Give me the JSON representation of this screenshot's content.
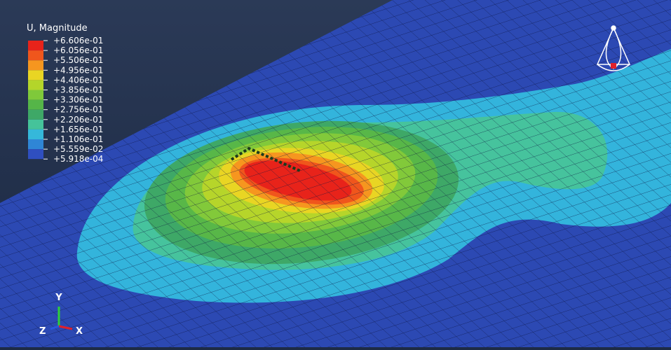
{
  "legend": {
    "title": "U, Magnitude",
    "labels": [
      "+6.606e-01",
      "+6.056e-01",
      "+5.506e-01",
      "+4.956e-01",
      "+4.406e-01",
      "+3.856e-01",
      "+3.306e-01",
      "+2.756e-01",
      "+2.206e-01",
      "+1.656e-01",
      "+1.106e-01",
      "+5.559e-02",
      "+5.918e-04"
    ],
    "colors": [
      "#e8231a",
      "#f0561c",
      "#f6961f",
      "#e9d523",
      "#b4d52a",
      "#7fc93a",
      "#55b548",
      "#3ea867",
      "#45c39a",
      "#35b8da",
      "#2f86d6",
      "#2f4fc0"
    ]
  },
  "triad": {
    "y": "Y",
    "z": "Z",
    "x": "X"
  }
}
